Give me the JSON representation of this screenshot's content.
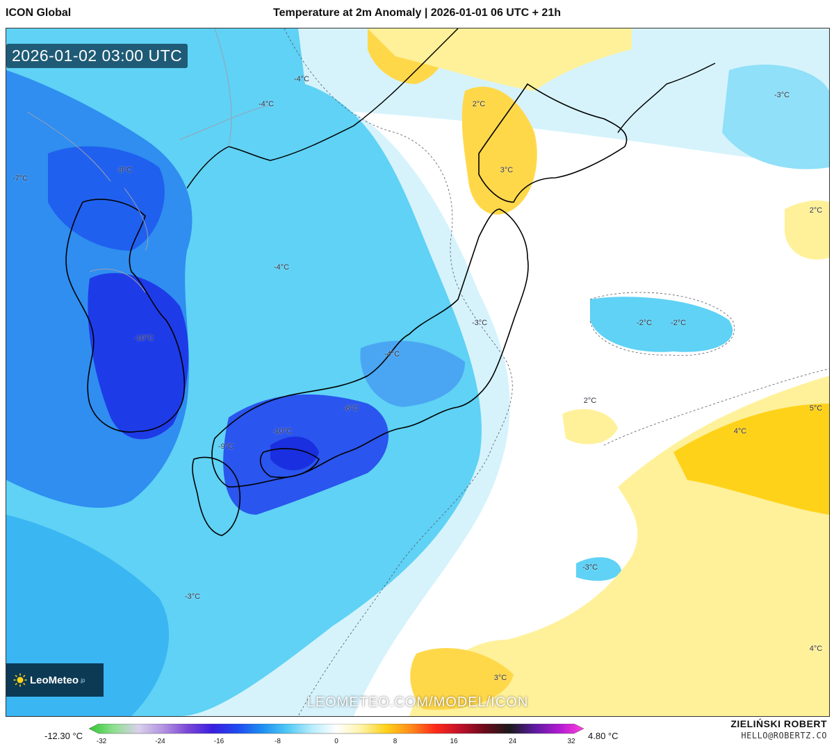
{
  "header": {
    "model": "ICON Global",
    "title": "Temperature at 2m Anomaly | 2026-01-01 06 UTC + 21h"
  },
  "map": {
    "valid_time": "2026-01-02 03:00 UTC",
    "watermark": "LEOMETEO.COM/MODEL/ICON",
    "logo": {
      "name": "LeoMeteo",
      "suffix": ".jp",
      "icon": "sun-icon"
    },
    "contour_labels": [
      "-4°C",
      "-4°C",
      "2°C",
      "-3°C",
      "-7°C",
      "-8°C",
      "3°C",
      "2°C",
      "-4°C",
      "-2°C",
      "-2°C",
      "-3°C",
      "-10°C",
      "-4°C",
      "2°C",
      "5°C",
      "4°C",
      "-6°C",
      "-10°C",
      "-9°C",
      "-3°C",
      "-3°C",
      "4°C",
      "3°C"
    ],
    "land_outline_color": "#000000",
    "border_color": "#9aa0b4"
  },
  "colorbar": {
    "min_label": "-12.30 °C",
    "max_label": "4.80 °C",
    "ticks": [
      "-32",
      "-24",
      "-16",
      "-8",
      "0",
      "8",
      "16",
      "24",
      "32"
    ],
    "range": [
      -32,
      32
    ],
    "colors": [
      "#2fc82f",
      "#8ee08e",
      "#d9d0ec",
      "#b393e0",
      "#7b46d6",
      "#3a1ee0",
      "#1f4af0",
      "#1e8ef2",
      "#4fc8f5",
      "#b7ecfb",
      "#ffffff",
      "#fff3a8",
      "#ffd21a",
      "#ff8c1a",
      "#ff2a1a",
      "#c0102a",
      "#6a0a1a",
      "#1a1a1a",
      "#5a1aa0",
      "#b01ad0",
      "#ff40e0"
    ]
  },
  "footer": {
    "author": "ZIELIŃSKI ROBERT",
    "email": "HELLO@ROBERTZ.CO"
  }
}
